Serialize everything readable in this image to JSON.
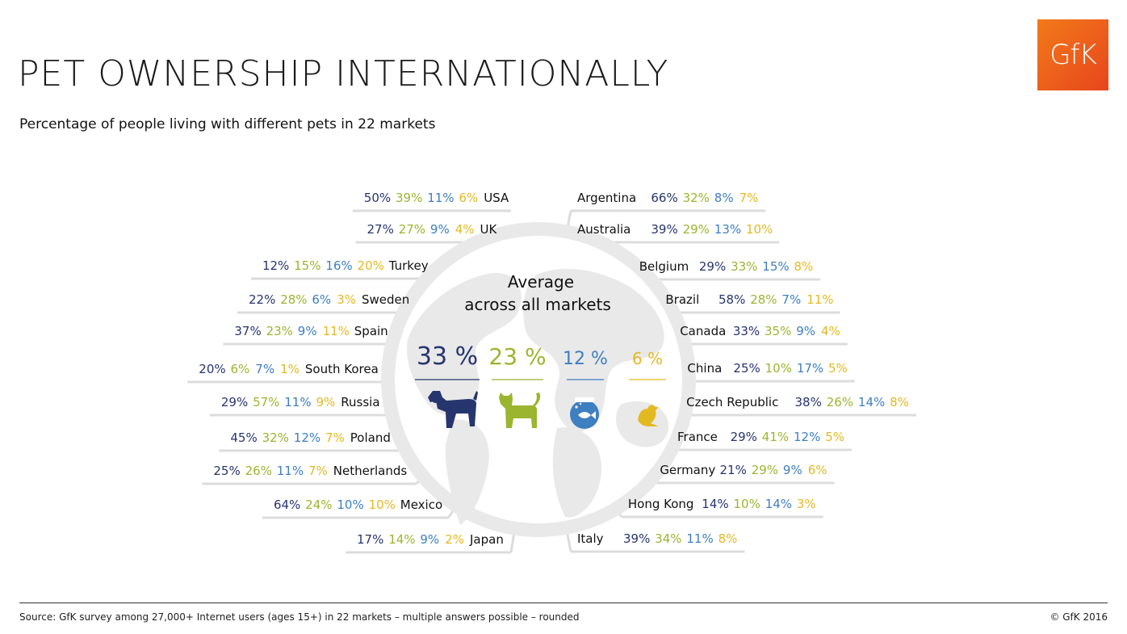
{
  "header": {
    "title": "PET OWNERSHIP INTERNATIONALLY",
    "subtitle": "Percentage of people living with different pets in 22 markets",
    "logo_text": "GfK"
  },
  "colors": {
    "dog": "#27356f",
    "cat": "#9bb52f",
    "fish": "#3e7fc1",
    "bird": "#e3b922",
    "globe": "#e9e9e9",
    "leader": "#dcdcdc",
    "logo": "#ef5a1c"
  },
  "chart_data": {
    "type": "table",
    "title": "Average across all markets",
    "series": [
      "dog",
      "cat",
      "fish",
      "bird"
    ],
    "average": {
      "label_line1": "Average",
      "label_line2": "across all markets",
      "values": [
        33,
        23,
        12,
        6
      ],
      "icons": [
        "dog-icon",
        "cat-icon",
        "fishbowl-icon",
        "bird-icon"
      ]
    },
    "left_markets": [
      {
        "country": "USA",
        "values": [
          50,
          39,
          11,
          6
        ]
      },
      {
        "country": "UK",
        "values": [
          27,
          27,
          9,
          4
        ]
      },
      {
        "country": "Turkey",
        "values": [
          12,
          15,
          16,
          20
        ]
      },
      {
        "country": "Sweden",
        "values": [
          22,
          28,
          6,
          3
        ]
      },
      {
        "country": "Spain",
        "values": [
          37,
          23,
          9,
          11
        ]
      },
      {
        "country": "South Korea",
        "values": [
          20,
          6,
          7,
          1
        ]
      },
      {
        "country": "Russia",
        "values": [
          29,
          57,
          11,
          9
        ]
      },
      {
        "country": "Poland",
        "values": [
          45,
          32,
          12,
          7
        ]
      },
      {
        "country": "Netherlands",
        "values": [
          25,
          26,
          11,
          7
        ]
      },
      {
        "country": "Mexico",
        "values": [
          64,
          24,
          10,
          10
        ]
      },
      {
        "country": "Japan",
        "values": [
          17,
          14,
          9,
          2
        ]
      }
    ],
    "right_markets": [
      {
        "country": "Argentina",
        "values": [
          66,
          32,
          8,
          7
        ]
      },
      {
        "country": "Australia",
        "values": [
          39,
          29,
          13,
          10
        ]
      },
      {
        "country": "Belgium",
        "values": [
          29,
          33,
          15,
          8
        ]
      },
      {
        "country": "Brazil",
        "values": [
          58,
          28,
          7,
          11
        ]
      },
      {
        "country": "Canada",
        "values": [
          33,
          35,
          9,
          4
        ]
      },
      {
        "country": "China",
        "values": [
          25,
          10,
          17,
          5
        ]
      },
      {
        "country": "Czech Republic",
        "values": [
          38,
          26,
          14,
          8
        ]
      },
      {
        "country": "France",
        "values": [
          29,
          41,
          12,
          5
        ]
      },
      {
        "country": "Germany",
        "values": [
          21,
          29,
          9,
          6
        ]
      },
      {
        "country": "Hong Kong",
        "values": [
          14,
          10,
          14,
          3
        ]
      },
      {
        "country": "Italy",
        "values": [
          39,
          34,
          11,
          8
        ]
      }
    ]
  },
  "footer": {
    "source": "Source:  GfK survey among 27,000+ Internet users (ages 15+) in 22 markets   – multiple answers possible – rounded",
    "copyright": "© GfK 2016"
  }
}
